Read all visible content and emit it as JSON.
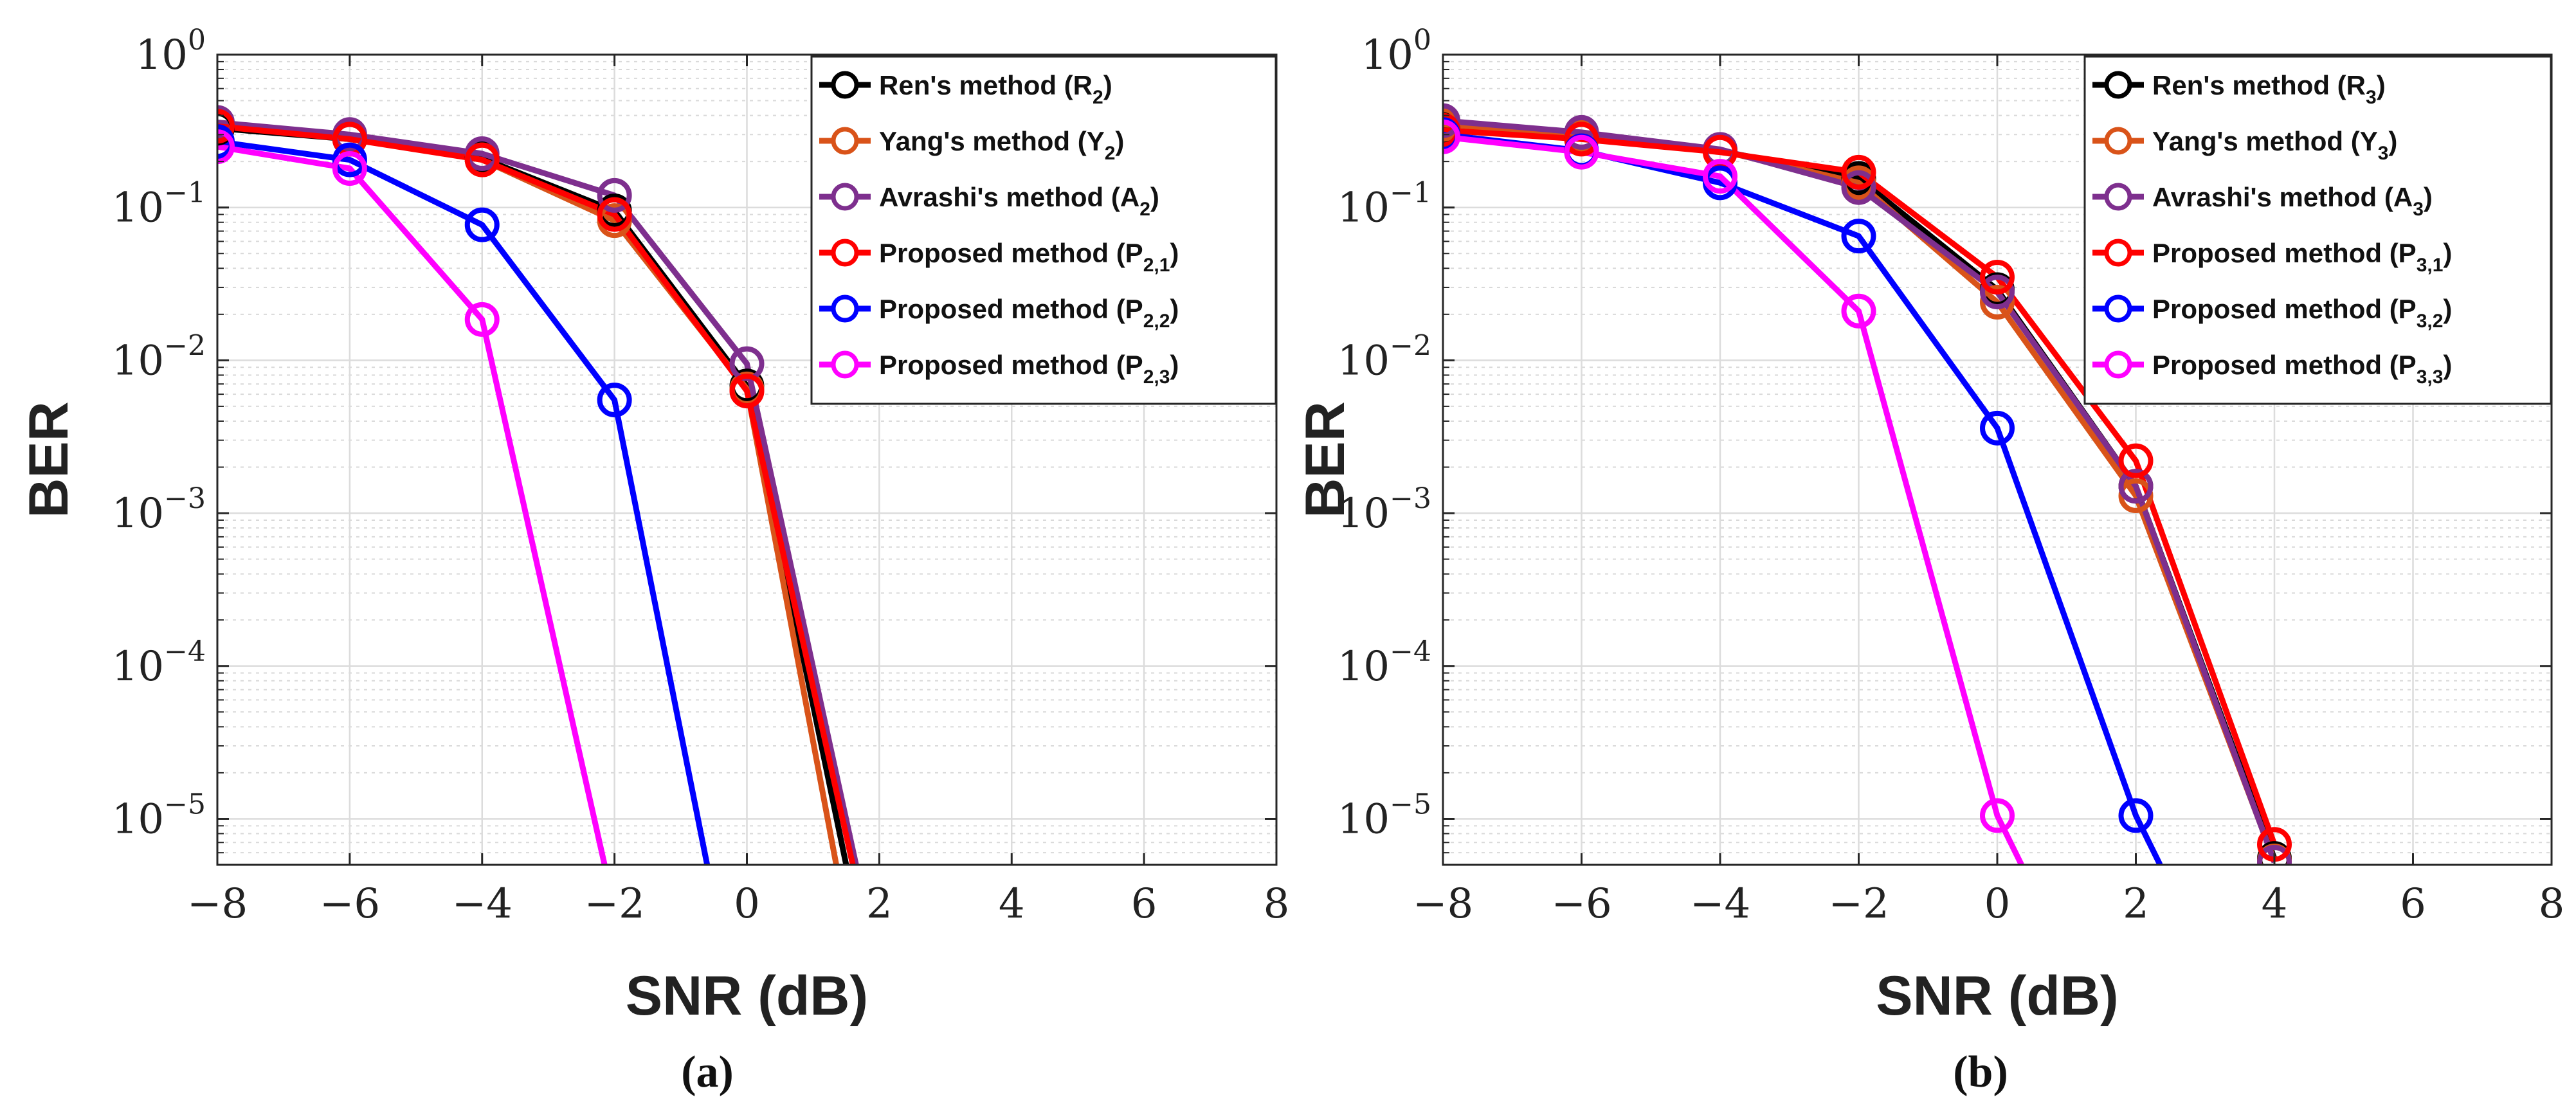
{
  "chart_data": [
    {
      "type": "line",
      "panel_label": "(a)",
      "xlabel": "SNR (dB)",
      "ylabel": "BER",
      "yscale": "log",
      "xlim": [
        -8,
        8
      ],
      "ylim": [
        5e-06,
        1
      ],
      "x_ticks": [
        "−8",
        "−6",
        "−4",
        "−2",
        "0",
        "2",
        "4",
        "6",
        "8"
      ],
      "y_ticks": [
        {
          "base": "10",
          "exp": "0"
        },
        {
          "base": "10",
          "exp": "−1"
        },
        {
          "base": "10",
          "exp": "−2"
        },
        {
          "base": "10",
          "exp": "−3"
        },
        {
          "base": "10",
          "exp": "−4"
        },
        {
          "base": "10",
          "exp": "−5"
        }
      ],
      "grid": true,
      "legend_position": "top-right",
      "series": [
        {
          "name": "Ren's method",
          "sym": "R",
          "sub": "2",
          "color": "#000000",
          "x": [
            -8,
            -6,
            -4,
            -2,
            0,
            1.5
          ],
          "y": [
            0.33,
            0.28,
            0.21,
            0.095,
            0.0068,
            5e-06
          ],
          "markers": [
            true,
            true,
            true,
            true,
            true,
            false
          ]
        },
        {
          "name": "Yang's method",
          "sym": "Y",
          "sub": "2",
          "color": "#D95319",
          "x": [
            -8,
            -6,
            -4,
            -2,
            0,
            1.35
          ],
          "y": [
            0.35,
            0.285,
            0.205,
            0.082,
            0.0065,
            5e-06
          ],
          "markers": [
            true,
            true,
            true,
            true,
            true,
            false
          ]
        },
        {
          "name": "Avrashi's method",
          "sym": "A",
          "sub": "2",
          "color": "#7E2F8E",
          "x": [
            -8,
            -6,
            -4,
            -2,
            0,
            1.65
          ],
          "y": [
            0.36,
            0.3,
            0.225,
            0.12,
            0.0095,
            5e-06
          ],
          "markers": [
            true,
            true,
            true,
            true,
            true,
            false
          ]
        },
        {
          "name": "Proposed method",
          "sym": "P",
          "sub": "2,1",
          "color": "#FF0000",
          "x": [
            -8,
            -6,
            -4,
            -2,
            0,
            1.6
          ],
          "y": [
            0.34,
            0.28,
            0.205,
            0.09,
            0.0063,
            5e-06
          ],
          "markers": [
            true,
            true,
            true,
            true,
            true,
            false
          ]
        },
        {
          "name": "Proposed method",
          "sym": "P",
          "sub": "2,2",
          "color": "#0000FF",
          "x": [
            -8,
            -6,
            -4,
            -2,
            -0.6
          ],
          "y": [
            0.27,
            0.205,
            0.077,
            0.0055,
            5e-06
          ],
          "markers": [
            true,
            true,
            true,
            true,
            false
          ]
        },
        {
          "name": "Proposed method",
          "sym": "P",
          "sub": "2,3",
          "color": "#FF00FF",
          "x": [
            -8,
            -6,
            -4,
            -2.15
          ],
          "y": [
            0.25,
            0.18,
            0.0185,
            5e-06
          ],
          "markers": [
            true,
            true,
            true,
            false
          ]
        }
      ]
    },
    {
      "type": "line",
      "panel_label": "(b)",
      "xlabel": "SNR (dB)",
      "ylabel": "BER",
      "yscale": "log",
      "xlim": [
        -8,
        8
      ],
      "ylim": [
        5e-06,
        1
      ],
      "x_ticks": [
        "−8",
        "−6",
        "−4",
        "−2",
        "0",
        "2",
        "4",
        "6",
        "8"
      ],
      "y_ticks": [
        {
          "base": "10",
          "exp": "0"
        },
        {
          "base": "10",
          "exp": "−1"
        },
        {
          "base": "10",
          "exp": "−2"
        },
        {
          "base": "10",
          "exp": "−3"
        },
        {
          "base": "10",
          "exp": "−4"
        },
        {
          "base": "10",
          "exp": "−5"
        }
      ],
      "grid": true,
      "legend_position": "top-right",
      "series": [
        {
          "name": "Ren's method",
          "sym": "R",
          "sub": "3",
          "color": "#000000",
          "x": [
            -8,
            -6,
            -4,
            -2,
            0,
            2,
            4
          ],
          "y": [
            0.34,
            0.29,
            0.235,
            0.155,
            0.029,
            0.0015,
            5.5e-06
          ],
          "markers": [
            true,
            true,
            true,
            true,
            true,
            true,
            true
          ]
        },
        {
          "name": "Yang's method",
          "sym": "Y",
          "sub": "3",
          "color": "#D95319",
          "x": [
            -8,
            -6,
            -4,
            -2,
            0,
            2,
            4
          ],
          "y": [
            0.35,
            0.3,
            0.235,
            0.145,
            0.024,
            0.0013,
            5.3e-06
          ],
          "markers": [
            true,
            true,
            true,
            true,
            true,
            true,
            true
          ]
        },
        {
          "name": "Avrashi's method",
          "sym": "A",
          "sub": "3",
          "color": "#7E2F8E",
          "x": [
            -8,
            -6,
            -4,
            -2,
            0,
            2,
            4
          ],
          "y": [
            0.37,
            0.31,
            0.24,
            0.135,
            0.028,
            0.0015,
            5.2e-06
          ],
          "markers": [
            true,
            true,
            true,
            true,
            true,
            true,
            true
          ]
        },
        {
          "name": "Proposed method",
          "sym": "P",
          "sub": "3,1",
          "color": "#FF0000",
          "x": [
            -8,
            -6,
            -4,
            -2,
            0,
            2,
            4
          ],
          "y": [
            0.32,
            0.28,
            0.23,
            0.17,
            0.035,
            0.0022,
            6.8e-06
          ],
          "markers": [
            true,
            true,
            true,
            true,
            true,
            true,
            true
          ]
        },
        {
          "name": "Proposed method",
          "sym": "P",
          "sub": "3,2",
          "color": "#0000FF",
          "x": [
            -8,
            -6,
            -4,
            -2,
            0,
            2,
            2.35
          ],
          "y": [
            0.3,
            0.235,
            0.145,
            0.065,
            0.0036,
            1.05e-05,
            5e-06
          ],
          "markers": [
            true,
            true,
            true,
            true,
            true,
            true,
            false
          ]
        },
        {
          "name": "Proposed method",
          "sym": "P",
          "sub": "3,3",
          "color": "#FF00FF",
          "x": [
            -8,
            -6,
            -4,
            -2,
            0,
            0.35
          ],
          "y": [
            0.29,
            0.23,
            0.16,
            0.021,
            1.05e-05,
            5e-06
          ],
          "markers": [
            true,
            true,
            true,
            true,
            true,
            false
          ]
        }
      ]
    }
  ]
}
